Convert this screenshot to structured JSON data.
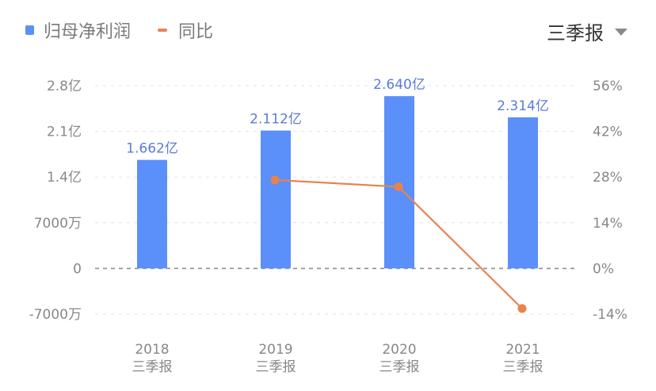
{
  "legend": {
    "items": [
      {
        "label": "归母净利润",
        "color": "#5b8ff9",
        "type": "bar"
      },
      {
        "label": "同比",
        "color": "#e8834e",
        "type": "line"
      }
    ]
  },
  "period_selector": {
    "label": "三季报",
    "icon": "caret-down-icon"
  },
  "colors": {
    "bar": "#5b8ff9",
    "line": "#e8834e",
    "bar_label": "#5b7bd6",
    "grid": "#e2e2e2",
    "zero": "#8a8f99"
  },
  "chart_data": {
    "type": "bar+line",
    "title": "",
    "categories": [
      "2018\n三季报",
      "2019\n三季报",
      "2020\n三季报",
      "2021\n三季报"
    ],
    "category_years": [
      "2018",
      "2019",
      "2020",
      "2021"
    ],
    "category_period": "三季报",
    "series": [
      {
        "name": "归母净利润",
        "type": "bar",
        "axis": "left",
        "unit": "亿",
        "values": [
          1.662,
          2.112,
          2.64,
          2.314
        ],
        "labels": [
          "1.662亿",
          "2.112亿",
          "2.640亿",
          "2.314亿"
        ]
      },
      {
        "name": "同比",
        "type": "line",
        "axis": "right",
        "unit": "%",
        "values": [
          null,
          27.1,
          25.0,
          -12.3
        ]
      }
    ],
    "left_axis": {
      "ticks": [
        "2.8亿",
        "2.1亿",
        "1.4亿",
        "7000万",
        "0",
        "-7000万"
      ],
      "values": [
        2.8,
        2.1,
        1.4,
        0.7,
        0,
        -0.7
      ],
      "ylim": [
        -0.7,
        2.8
      ]
    },
    "right_axis": {
      "ticks": [
        "56%",
        "42%",
        "28%",
        "14%",
        "0%",
        "-14%"
      ],
      "values": [
        56,
        42,
        28,
        14,
        0,
        -14
      ],
      "ylim": [
        -14,
        56
      ]
    },
    "grid": true,
    "legend_position": "top-left"
  }
}
